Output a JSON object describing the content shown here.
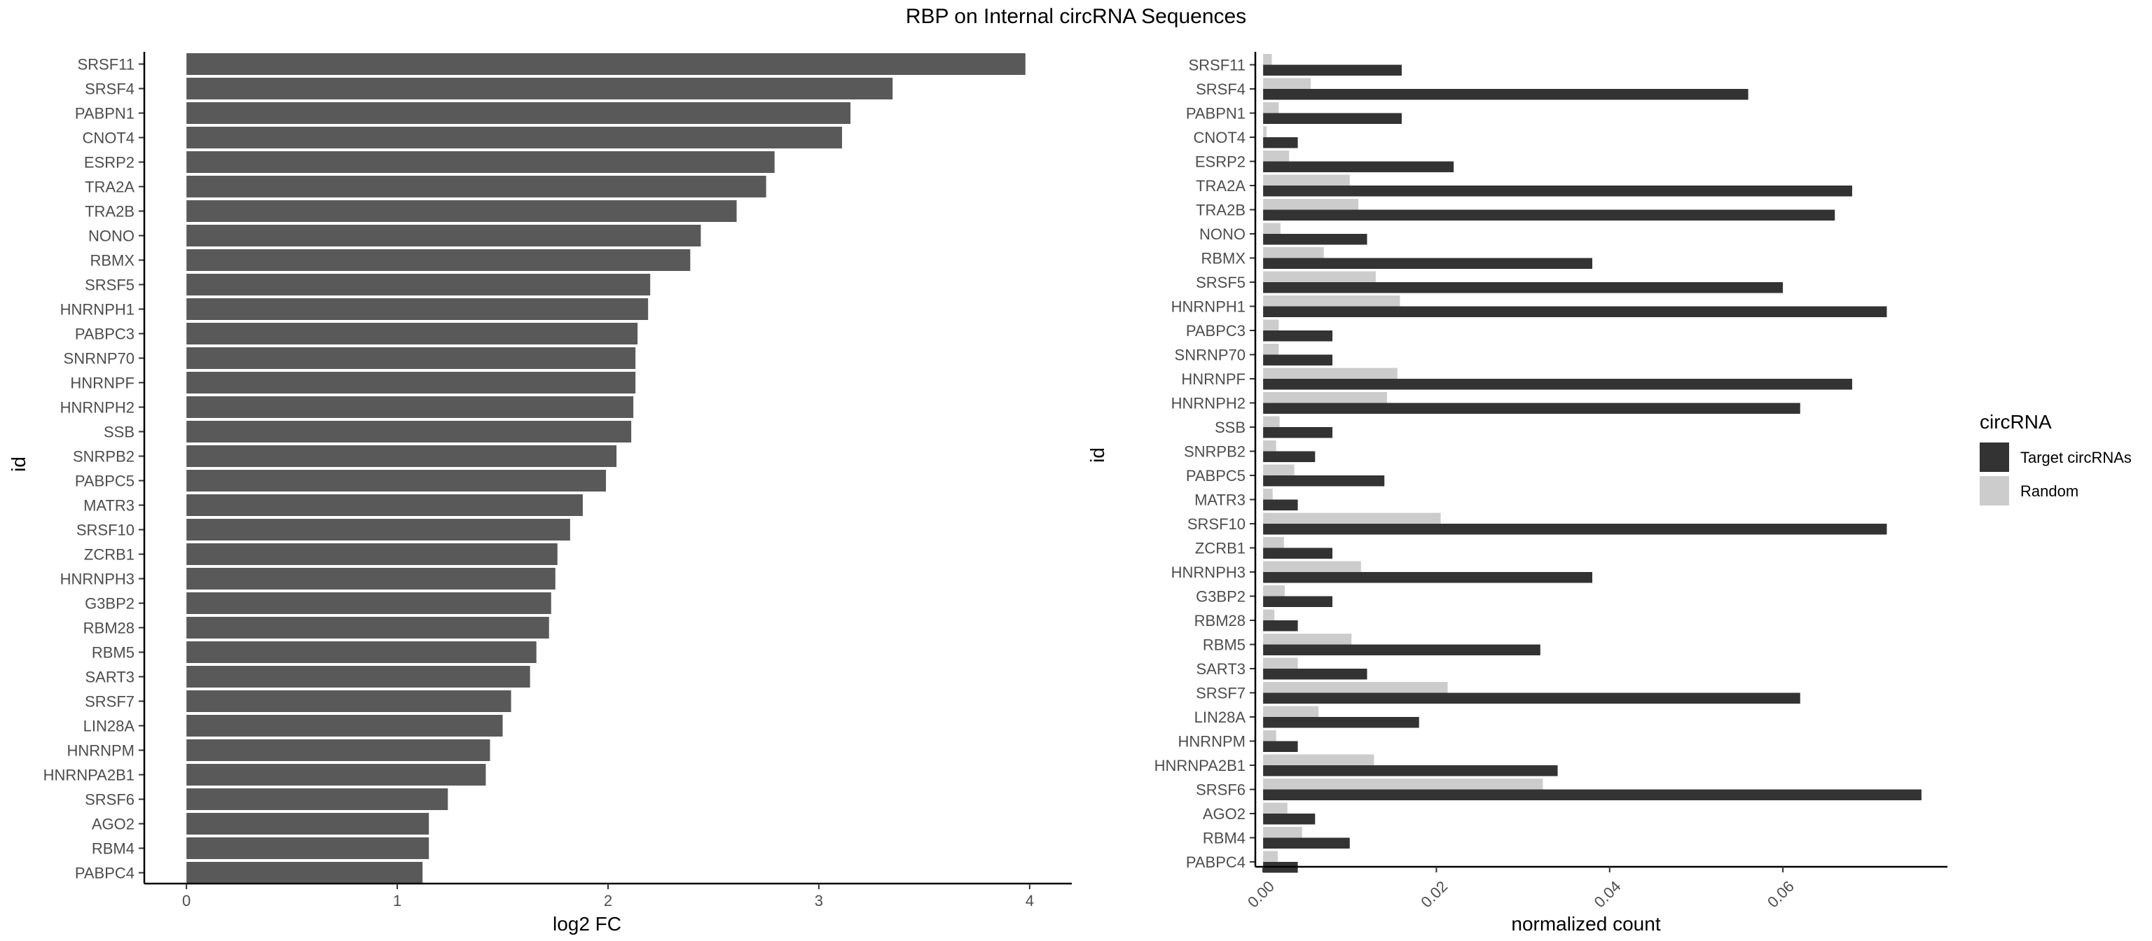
{
  "title": "RBP on Internal circRNA Sequences",
  "chart_data": [
    {
      "type": "bar",
      "orientation": "horizontal",
      "xlabel": "log2 FC",
      "ylabel": "id",
      "xlim": [
        -0.2,
        4.2
      ],
      "xticks": [
        0,
        1,
        2,
        3,
        4
      ],
      "grid": false,
      "bar_color": "#595959",
      "categories": [
        "SRSF11",
        "SRSF4",
        "PABPN1",
        "CNOT4",
        "ESRP2",
        "TRA2A",
        "TRA2B",
        "NONO",
        "RBMX",
        "SRSF5",
        "HNRNPH1",
        "PABPC3",
        "SNRNP70",
        "HNRNPF",
        "HNRNPH2",
        "SSB",
        "SNRPB2",
        "PABPC5",
        "MATR3",
        "SRSF10",
        "ZCRB1",
        "HNRNPH3",
        "G3BP2",
        "RBM28",
        "RBM5",
        "SART3",
        "SRSF7",
        "LIN28A",
        "HNRNPM",
        "HNRNPA2B1",
        "SRSF6",
        "AGO2",
        "RBM4",
        "PABPC4"
      ],
      "values": [
        3.98,
        3.35,
        3.15,
        3.11,
        2.79,
        2.75,
        2.61,
        2.44,
        2.39,
        2.2,
        2.19,
        2.14,
        2.13,
        2.13,
        2.12,
        2.11,
        2.04,
        1.99,
        1.88,
        1.82,
        1.76,
        1.75,
        1.73,
        1.72,
        1.66,
        1.63,
        1.54,
        1.5,
        1.44,
        1.42,
        1.24,
        1.15,
        1.15,
        1.12
      ]
    },
    {
      "type": "bar",
      "orientation": "horizontal",
      "grouped": true,
      "xlabel": "normalized count",
      "ylabel": "id",
      "xlim": [
        -0.0009,
        0.079
      ],
      "xticks": [
        0.0,
        0.02,
        0.04,
        0.06
      ],
      "xtick_labels": [
        "0.00",
        "0.02",
        "0.04",
        "0.06"
      ],
      "grid": false,
      "legend_title": "circRNA",
      "legend_position": "right",
      "categories": [
        "SRSF11",
        "SRSF4",
        "PABPN1",
        "CNOT4",
        "ESRP2",
        "TRA2A",
        "TRA2B",
        "NONO",
        "RBMX",
        "SRSF5",
        "HNRNPH1",
        "PABPC3",
        "SNRNP70",
        "HNRNPF",
        "HNRNPH2",
        "SSB",
        "SNRPB2",
        "PABPC5",
        "MATR3",
        "SRSF10",
        "ZCRB1",
        "HNRNPH3",
        "G3BP2",
        "RBM28",
        "RBM5",
        "SART3",
        "SRSF7",
        "LIN28A",
        "HNRNPM",
        "HNRNPA2B1",
        "SRSF6",
        "AGO2",
        "RBM4",
        "PABPC4"
      ],
      "series": [
        {
          "name": "Target circRNAs",
          "color": "#333333",
          "values": [
            0.016,
            0.056,
            0.016,
            0.004,
            0.022,
            0.068,
            0.066,
            0.012,
            0.038,
            0.06,
            0.072,
            0.008,
            0.008,
            0.068,
            0.062,
            0.008,
            0.006,
            0.014,
            0.004,
            0.072,
            0.008,
            0.038,
            0.008,
            0.004,
            0.032,
            0.012,
            0.062,
            0.018,
            0.004,
            0.034,
            0.076,
            0.006,
            0.01,
            0.004
          ]
        },
        {
          "name": "Random",
          "color": "#cccccc",
          "values": [
            0.001,
            0.0055,
            0.0018,
            0.0004,
            0.003,
            0.01,
            0.011,
            0.002,
            0.007,
            0.013,
            0.0158,
            0.0018,
            0.0018,
            0.0155,
            0.0143,
            0.0019,
            0.0015,
            0.0036,
            0.0011,
            0.0205,
            0.0024,
            0.0113,
            0.0025,
            0.0013,
            0.0102,
            0.004,
            0.0213,
            0.0064,
            0.0015,
            0.0128,
            0.0323,
            0.0028,
            0.0045,
            0.0017
          ]
        }
      ]
    }
  ]
}
